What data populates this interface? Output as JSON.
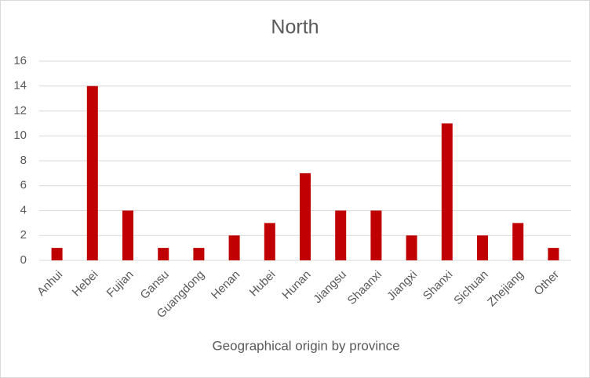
{
  "chart_data": {
    "type": "bar",
    "title": "North",
    "x_label": "Geographical origin by province",
    "categories": [
      "Anhui",
      "Hebei",
      "Fujian",
      "Gansu",
      "Guangdong",
      "Henan",
      "Hubei",
      "Hunan",
      "Jiangsu",
      "Shaanxi",
      "Jiangxi",
      "Shanxi",
      "Sichuan",
      "Zhejiang",
      "Other"
    ],
    "values": [
      1,
      14,
      4,
      1,
      1,
      2,
      3,
      7,
      4,
      4,
      2,
      11,
      2,
      3,
      1
    ],
    "color": "#c00000",
    "ylim": [
      0,
      16
    ],
    "yticks": [
      0,
      2,
      4,
      6,
      8,
      10,
      12,
      14,
      16
    ],
    "grid": true
  }
}
